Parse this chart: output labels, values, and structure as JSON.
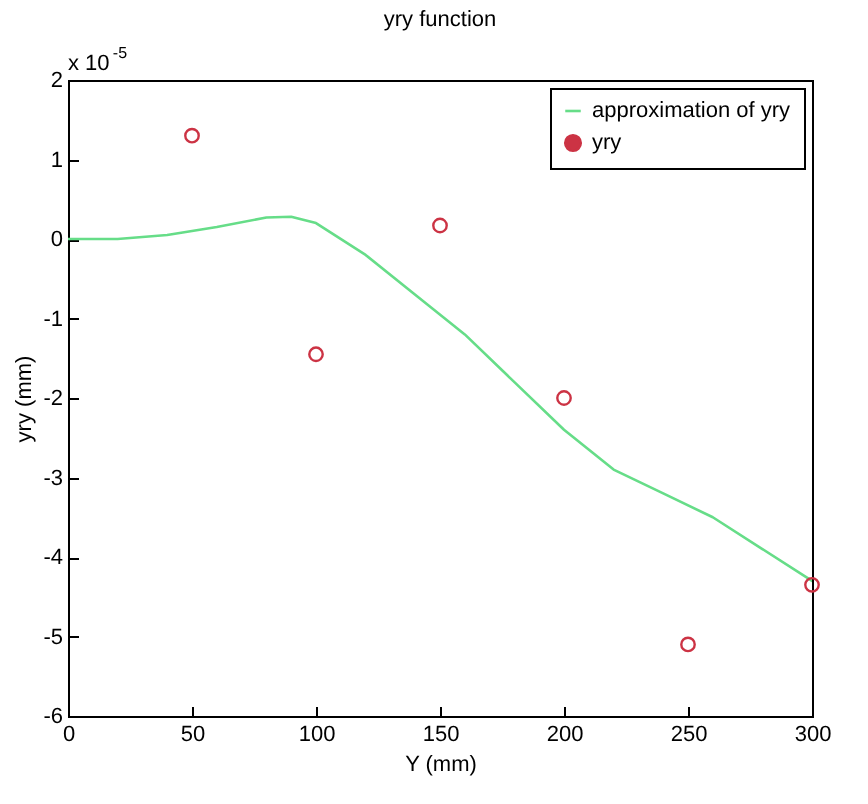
{
  "chart_data": {
    "type": "line",
    "title": "yry function",
    "xlabel": "Y (mm)",
    "ylabel": "yry (mm)",
    "annotations": [
      "x 10$^{-5}$"
    ],
    "xlim": [
      0,
      300
    ],
    "xticks": [
      0,
      50,
      100,
      150,
      200,
      250,
      300
    ],
    "ylim": [
      -6,
      2
    ],
    "yticks": [
      -6,
      -5,
      -4,
      -3,
      -2,
      -1,
      0,
      1,
      2
    ],
    "grid": false,
    "legend": "top right",
    "series": [
      {
        "name": "approximation of yry",
        "color": "#66dd88",
        "marker": "none",
        "line_style": "solid",
        "x": [
          0,
          20,
          40,
          60,
          80,
          90,
          100,
          120,
          140,
          160,
          180,
          200,
          220,
          240,
          260,
          280,
          300
        ],
        "values": [
          0,
          0,
          0.05,
          0.15,
          0.27,
          0.28,
          0.2,
          -0.2,
          -0.7,
          -1.2,
          -1.8,
          -2.4,
          -2.9,
          -3.2,
          -3.5,
          -3.9,
          -4.3
        ]
      },
      {
        "name": "yry",
        "type": "scatter",
        "color": "#cc3344",
        "marker": "circle",
        "x": [
          50,
          100,
          150,
          200,
          250,
          300
        ],
        "values": [
          1.3,
          -1.45,
          0.17,
          -2,
          -5.1,
          -4.35
        ]
      }
    ]
  }
}
